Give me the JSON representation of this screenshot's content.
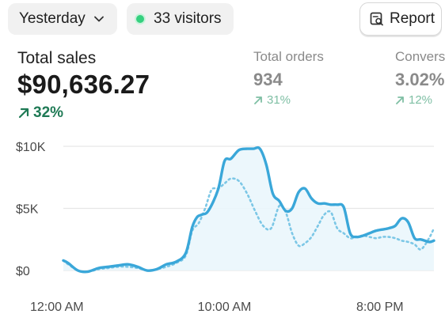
{
  "filters": {
    "date_label": "Yesterday",
    "visitors_label": "33 visitors"
  },
  "report_button": {
    "label": "Report"
  },
  "metrics": {
    "total_sales": {
      "label": "Total sales",
      "value": "$90,636.27",
      "delta": "32%"
    },
    "total_orders": {
      "label": "Total orders",
      "value": "934",
      "delta": "31%"
    },
    "conversion": {
      "label": "Convers",
      "value": "3.02%",
      "delta": "12%"
    }
  },
  "colors": {
    "line": "#3aa7d9",
    "fill": "#eaf6fc",
    "grid": "#e6e6e6",
    "delta_primary": "#1f7a55",
    "delta_secondary": "#7fbfa4",
    "online_dot": "#35d07f"
  },
  "chart_data": {
    "type": "line",
    "x_tick_labels": [
      "12:00 AM",
      "10:00 AM",
      "8:00 PM"
    ],
    "x_ticks": [
      0,
      10,
      20
    ],
    "xlim": [
      0,
      23
    ],
    "ylim": [
      0,
      10000
    ],
    "y_ticks": [
      0,
      5000,
      10000
    ],
    "y_tick_labels": [
      "$0",
      "$5K",
      "$10K"
    ],
    "grid": true,
    "legend": "none",
    "series": [
      {
        "style": "solid",
        "x": [
          0,
          0.3,
          0.9,
          1.5,
          2.2,
          2.8,
          3.4,
          4.0,
          4.6,
          5.2,
          5.8,
          6.4,
          7.0,
          7.6,
          8.0,
          8.3,
          8.6,
          9.0,
          9.6,
          10.0,
          10.4,
          10.9,
          11.4,
          11.8,
          12.2,
          12.6,
          13.0,
          13.4,
          13.8,
          14.2,
          14.6,
          15.0,
          15.4,
          15.8,
          16.2,
          16.6,
          17.0,
          17.4,
          17.8,
          18.2,
          18.6,
          19.0,
          19.4,
          19.8,
          20.2,
          20.6,
          21.0,
          21.4,
          21.8,
          22.2,
          22.7,
          23.0
        ],
        "y": [
          800,
          600,
          0,
          -100,
          200,
          300,
          400,
          500,
          300,
          0,
          100,
          500,
          700,
          1400,
          3500,
          4300,
          4500,
          4800,
          6500,
          8800,
          9000,
          9700,
          9800,
          9800,
          9800,
          8500,
          6200,
          5600,
          4800,
          5000,
          6300,
          6600,
          5800,
          5400,
          5400,
          5300,
          5300,
          5100,
          3000,
          2700,
          2800,
          3000,
          3200,
          3300,
          3400,
          3600,
          4200,
          3900,
          2600,
          2500,
          2300,
          2400
        ]
      },
      {
        "style": "dotted",
        "x": [
          0,
          0.3,
          0.9,
          1.5,
          2.2,
          2.8,
          3.4,
          4.0,
          4.6,
          5.2,
          5.8,
          6.4,
          7.0,
          7.6,
          8.0,
          8.4,
          8.8,
          9.2,
          9.6,
          10.0,
          10.4,
          10.9,
          11.4,
          11.9,
          12.4,
          12.9,
          13.4,
          13.8,
          14.2,
          14.6,
          15.0,
          15.4,
          15.8,
          16.2,
          16.6,
          17.0,
          17.4,
          17.8,
          18.2,
          18.6,
          19.0,
          19.4,
          19.8,
          20.2,
          20.6,
          21.0,
          21.4,
          21.8,
          22.2,
          22.7,
          23.0
        ],
        "y": [
          800,
          500,
          0,
          -100,
          100,
          200,
          300,
          300,
          200,
          0,
          100,
          300,
          600,
          1200,
          3200,
          3800,
          5000,
          6500,
          6600,
          7000,
          7400,
          7200,
          6200,
          4800,
          3600,
          3400,
          5200,
          4700,
          3000,
          2000,
          2200,
          2700,
          3600,
          4500,
          4700,
          3400,
          3000,
          2600,
          2700,
          2800,
          2700,
          2600,
          2700,
          2700,
          2600,
          2400,
          2300,
          2100,
          1700,
          2600,
          3400
        ]
      }
    ]
  }
}
